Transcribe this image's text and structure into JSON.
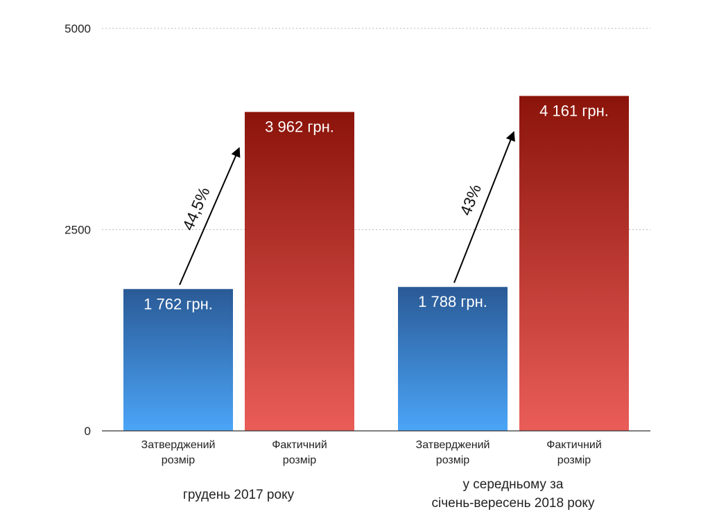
{
  "colors": {
    "approved_top": "#2a5a96",
    "approved_bottom": "#4ba5f8",
    "actual_top": "#8b140a",
    "actual_bottom": "#ea5d58",
    "label_text": "#ffffff"
  },
  "chart_data": {
    "type": "bar",
    "title": "",
    "xlabel": "",
    "ylabel": "",
    "ylim": [
      0,
      5000
    ],
    "yticks": [
      "0",
      "2500",
      "5000"
    ],
    "ytick_values": [
      0,
      2500,
      5000
    ],
    "grid": true,
    "legend": "none",
    "categories": [
      "Затверджений розмір",
      "Фактичний розмір",
      "Затверджений розмір",
      "Фактичний розмір"
    ],
    "groups": [
      {
        "label_lines": [
          "грудень 2017 року"
        ],
        "bars": [
          {
            "category_lines": [
              "Затверджений",
              "розмір"
            ],
            "value": 1762,
            "label": "1 762 грн.",
            "kind": "approved"
          },
          {
            "category_lines": [
              "Фактичний",
              "розмір"
            ],
            "value": 3962,
            "label": "3 962 грн.",
            "kind": "actual"
          }
        ],
        "growth": "44,5%"
      },
      {
        "label_lines": [
          "у середньому за",
          "січень-вересень 2018 року"
        ],
        "bars": [
          {
            "category_lines": [
              "Затверджений",
              "розмір"
            ],
            "value": 1788,
            "label": "1 788 грн.",
            "kind": "approved"
          },
          {
            "category_lines": [
              "Фактичний",
              "розмір"
            ],
            "value": 4161,
            "label": "4 161 грн.",
            "kind": "actual"
          }
        ],
        "growth": "43%"
      }
    ]
  }
}
